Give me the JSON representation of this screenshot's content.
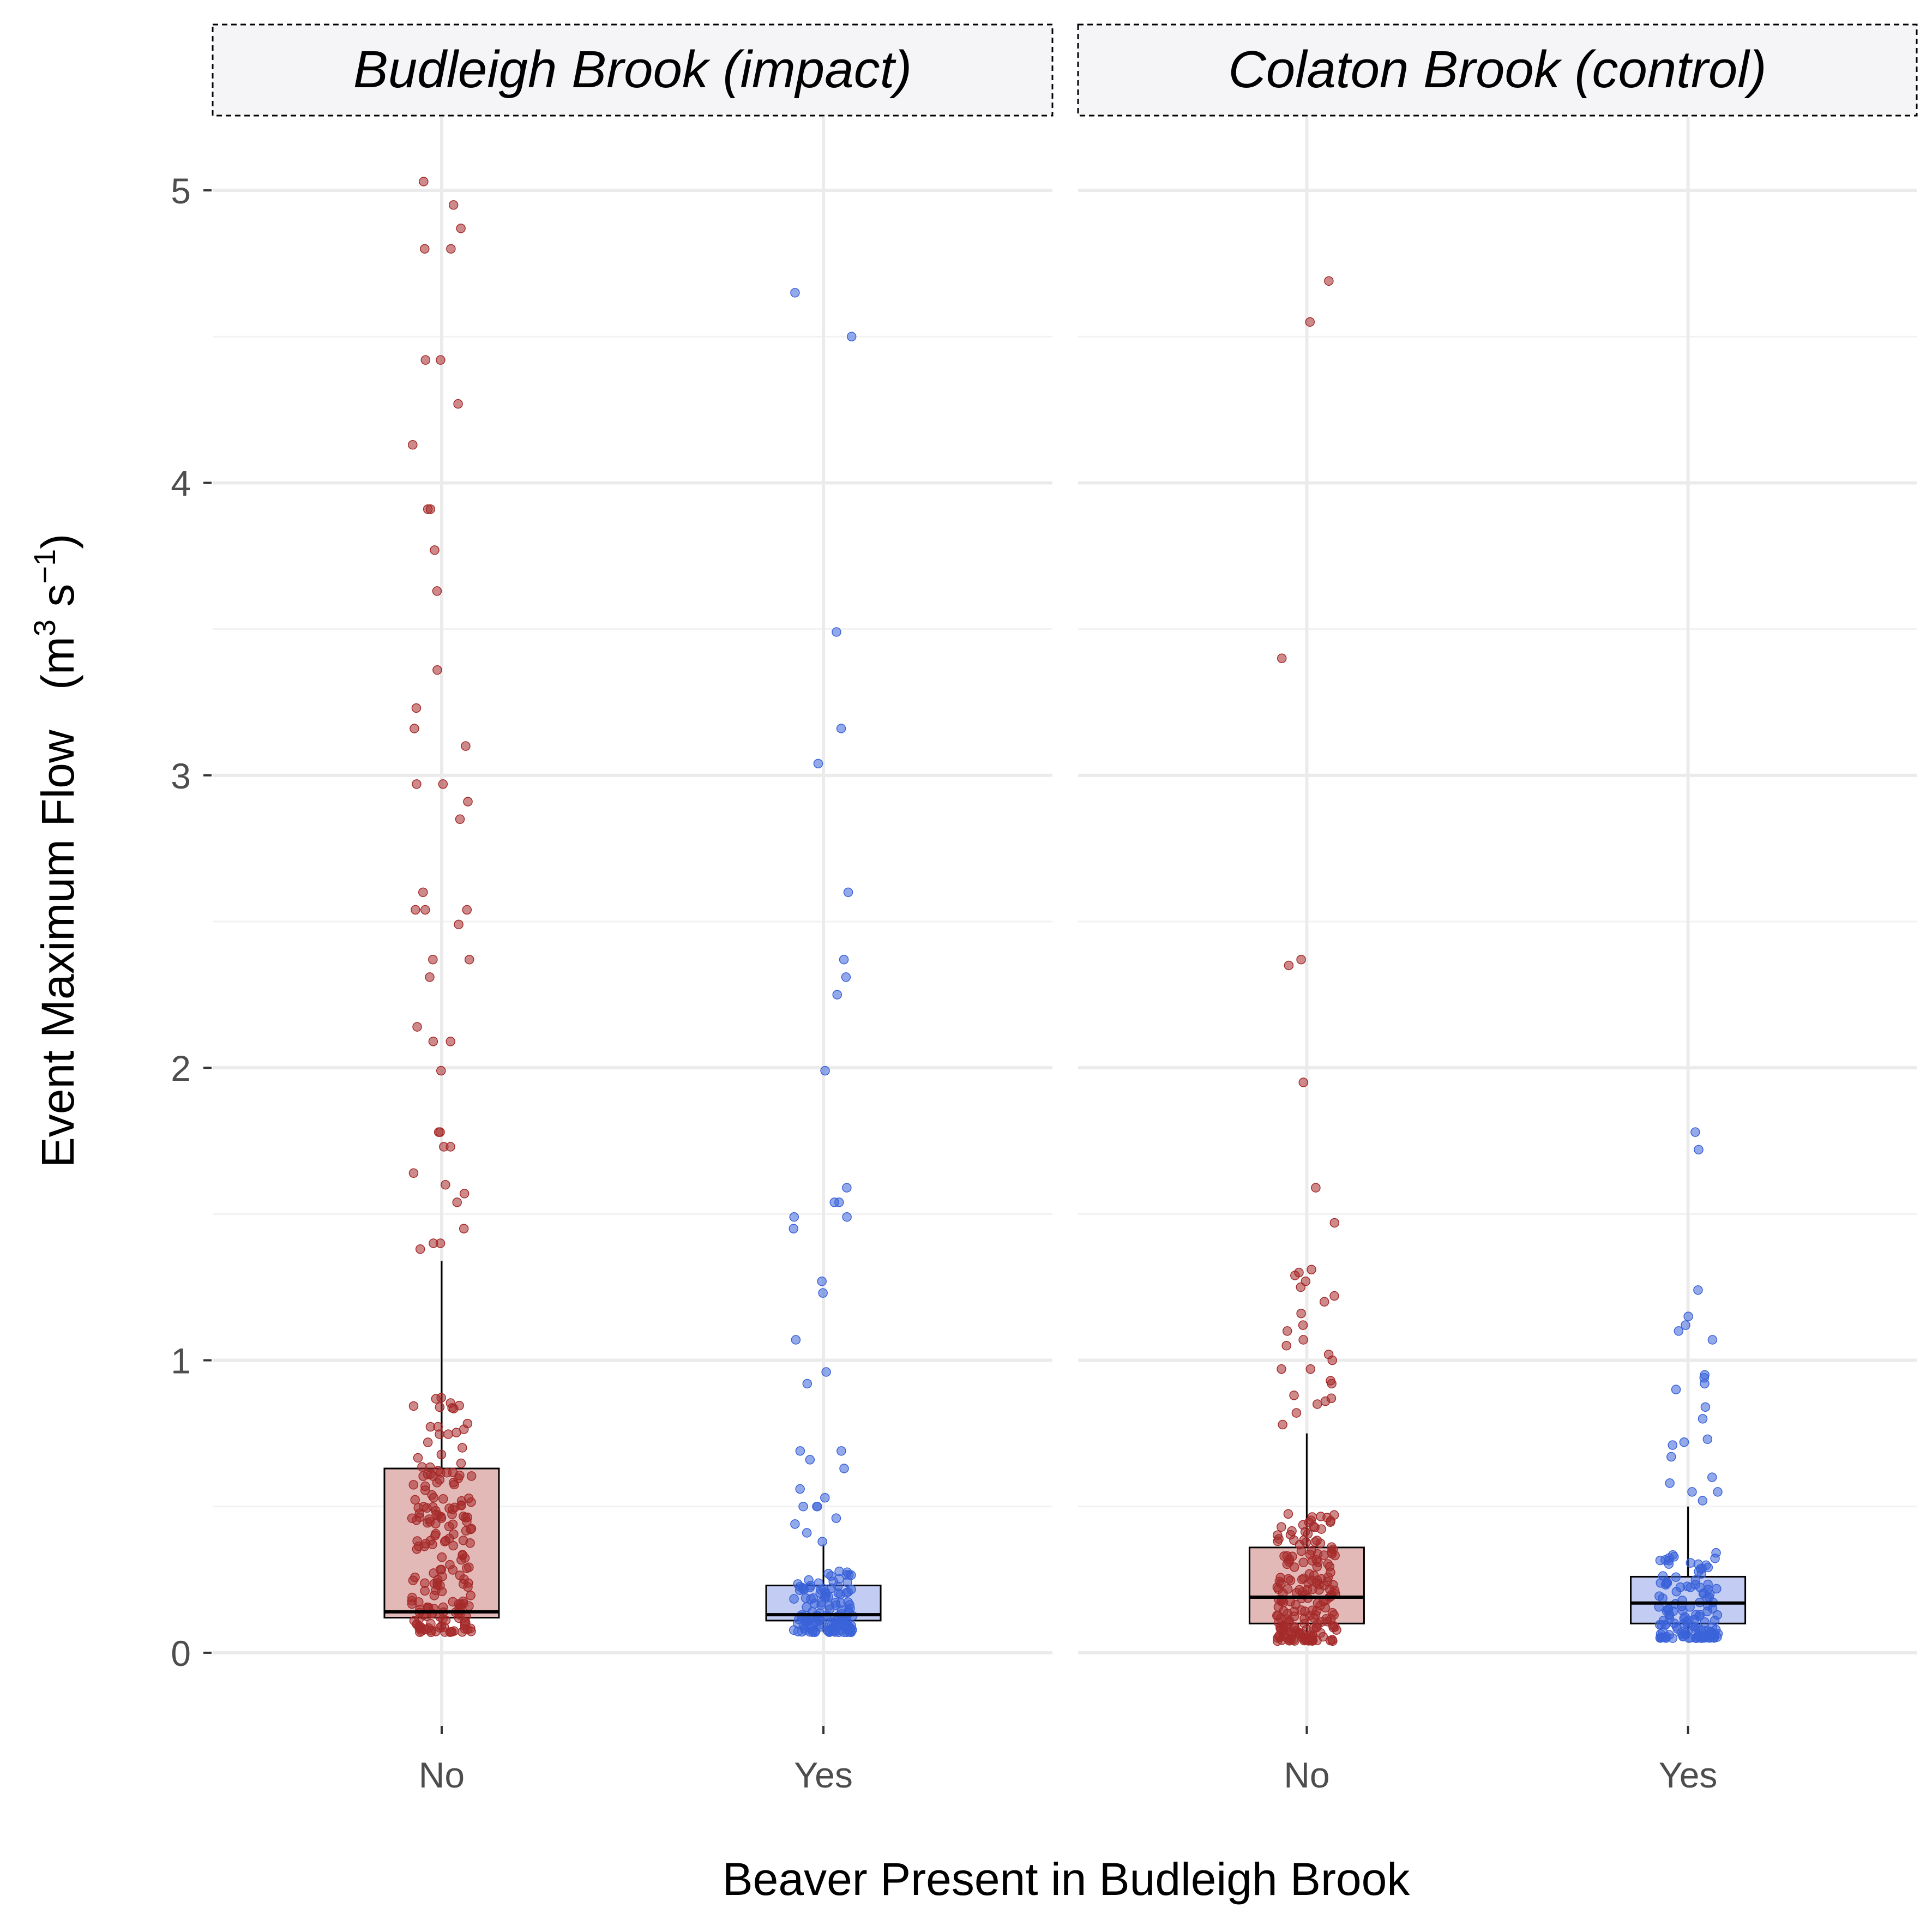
{
  "chart_data": {
    "type": "box+jitter",
    "xlabel": "Beaver Present in Budleigh Brook",
    "ylabel": "Event Maximum Flow",
    "ylabel_unit": {
      "open": "(m",
      "exp1": "3",
      "mid": " s",
      "exp2": "−1",
      "close": ")"
    },
    "ylim": [
      -0.25,
      5.25
    ],
    "y_ticks": [
      0,
      1,
      2,
      3,
      4,
      5
    ],
    "y_tick_labels": [
      "0",
      "1",
      "2",
      "3",
      "4",
      "5"
    ],
    "categories": [
      "No",
      "Yes"
    ],
    "grid": true,
    "colors": {
      "No": "#a52a2a",
      "Yes": "#3a63d9"
    },
    "box_fill": {
      "No": "#e2b9b6",
      "Yes": "#c3cdf3"
    },
    "panels": [
      {
        "title": "Budleigh Brook (impact)",
        "groups": [
          {
            "category": "No",
            "box": {
              "q1": 0.12,
              "median": 0.14,
              "q3": 0.63,
              "whisker_low": 0.07,
              "whisker_high": 1.34
            },
            "outliers": [
              5.03,
              4.95,
              4.87,
              4.8,
              4.8,
              4.42,
              4.42,
              4.27,
              4.13,
              3.91,
              3.91,
              3.77,
              3.63,
              3.36,
              3.23,
              3.16,
              3.1,
              2.97,
              2.97,
              2.91,
              2.85,
              2.6,
              2.54,
              2.54,
              2.54,
              2.49,
              2.37,
              2.37,
              2.31,
              2.14,
              2.09,
              2.09,
              1.99,
              1.78,
              1.78,
              1.73,
              1.73,
              1.64,
              1.6,
              1.57,
              1.54,
              1.45,
              1.4,
              1.4,
              1.38
            ]
          },
          {
            "category": "Yes",
            "box": {
              "q1": 0.11,
              "median": 0.13,
              "q3": 0.23,
              "whisker_low": 0.07,
              "whisker_high": 0.37
            },
            "outliers": [
              4.65,
              4.5,
              3.49,
              3.16,
              3.04,
              2.6,
              2.37,
              2.31,
              2.25,
              1.99,
              1.59,
              1.54,
              1.54,
              1.49,
              1.49,
              1.45,
              1.27,
              1.23,
              1.07,
              0.96,
              0.92,
              0.69,
              0.69,
              0.66,
              0.63,
              0.56,
              0.53,
              0.5,
              0.5,
              0.5,
              0.46,
              0.44,
              0.41,
              0.38
            ]
          }
        ]
      },
      {
        "title": "Colaton Brook (control)",
        "groups": [
          {
            "category": "No",
            "box": {
              "q1": 0.1,
              "median": 0.19,
              "q3": 0.36,
              "whisker_low": 0.04,
              "whisker_high": 0.75
            },
            "outliers": [
              4.69,
              4.55,
              3.4,
              2.37,
              2.35,
              1.95,
              1.59,
              1.47,
              1.31,
              1.3,
              1.29,
              1.27,
              1.25,
              1.22,
              1.2,
              1.16,
              1.12,
              1.1,
              1.07,
              1.05,
              1.02,
              1.0,
              0.97,
              0.97,
              0.93,
              0.92,
              0.88,
              0.87,
              0.86,
              0.85,
              0.82,
              0.78
            ]
          },
          {
            "category": "Yes",
            "box": {
              "q1": 0.1,
              "median": 0.17,
              "q3": 0.26,
              "whisker_low": 0.05,
              "whisker_high": 0.5
            },
            "outliers": [
              1.78,
              1.72,
              1.24,
              1.15,
              1.12,
              1.1,
              1.07,
              0.95,
              0.94,
              0.92,
              0.9,
              0.84,
              0.8,
              0.73,
              0.72,
              0.71,
              0.67,
              0.6,
              0.58,
              0.55,
              0.55,
              0.52
            ]
          }
        ]
      }
    ]
  }
}
